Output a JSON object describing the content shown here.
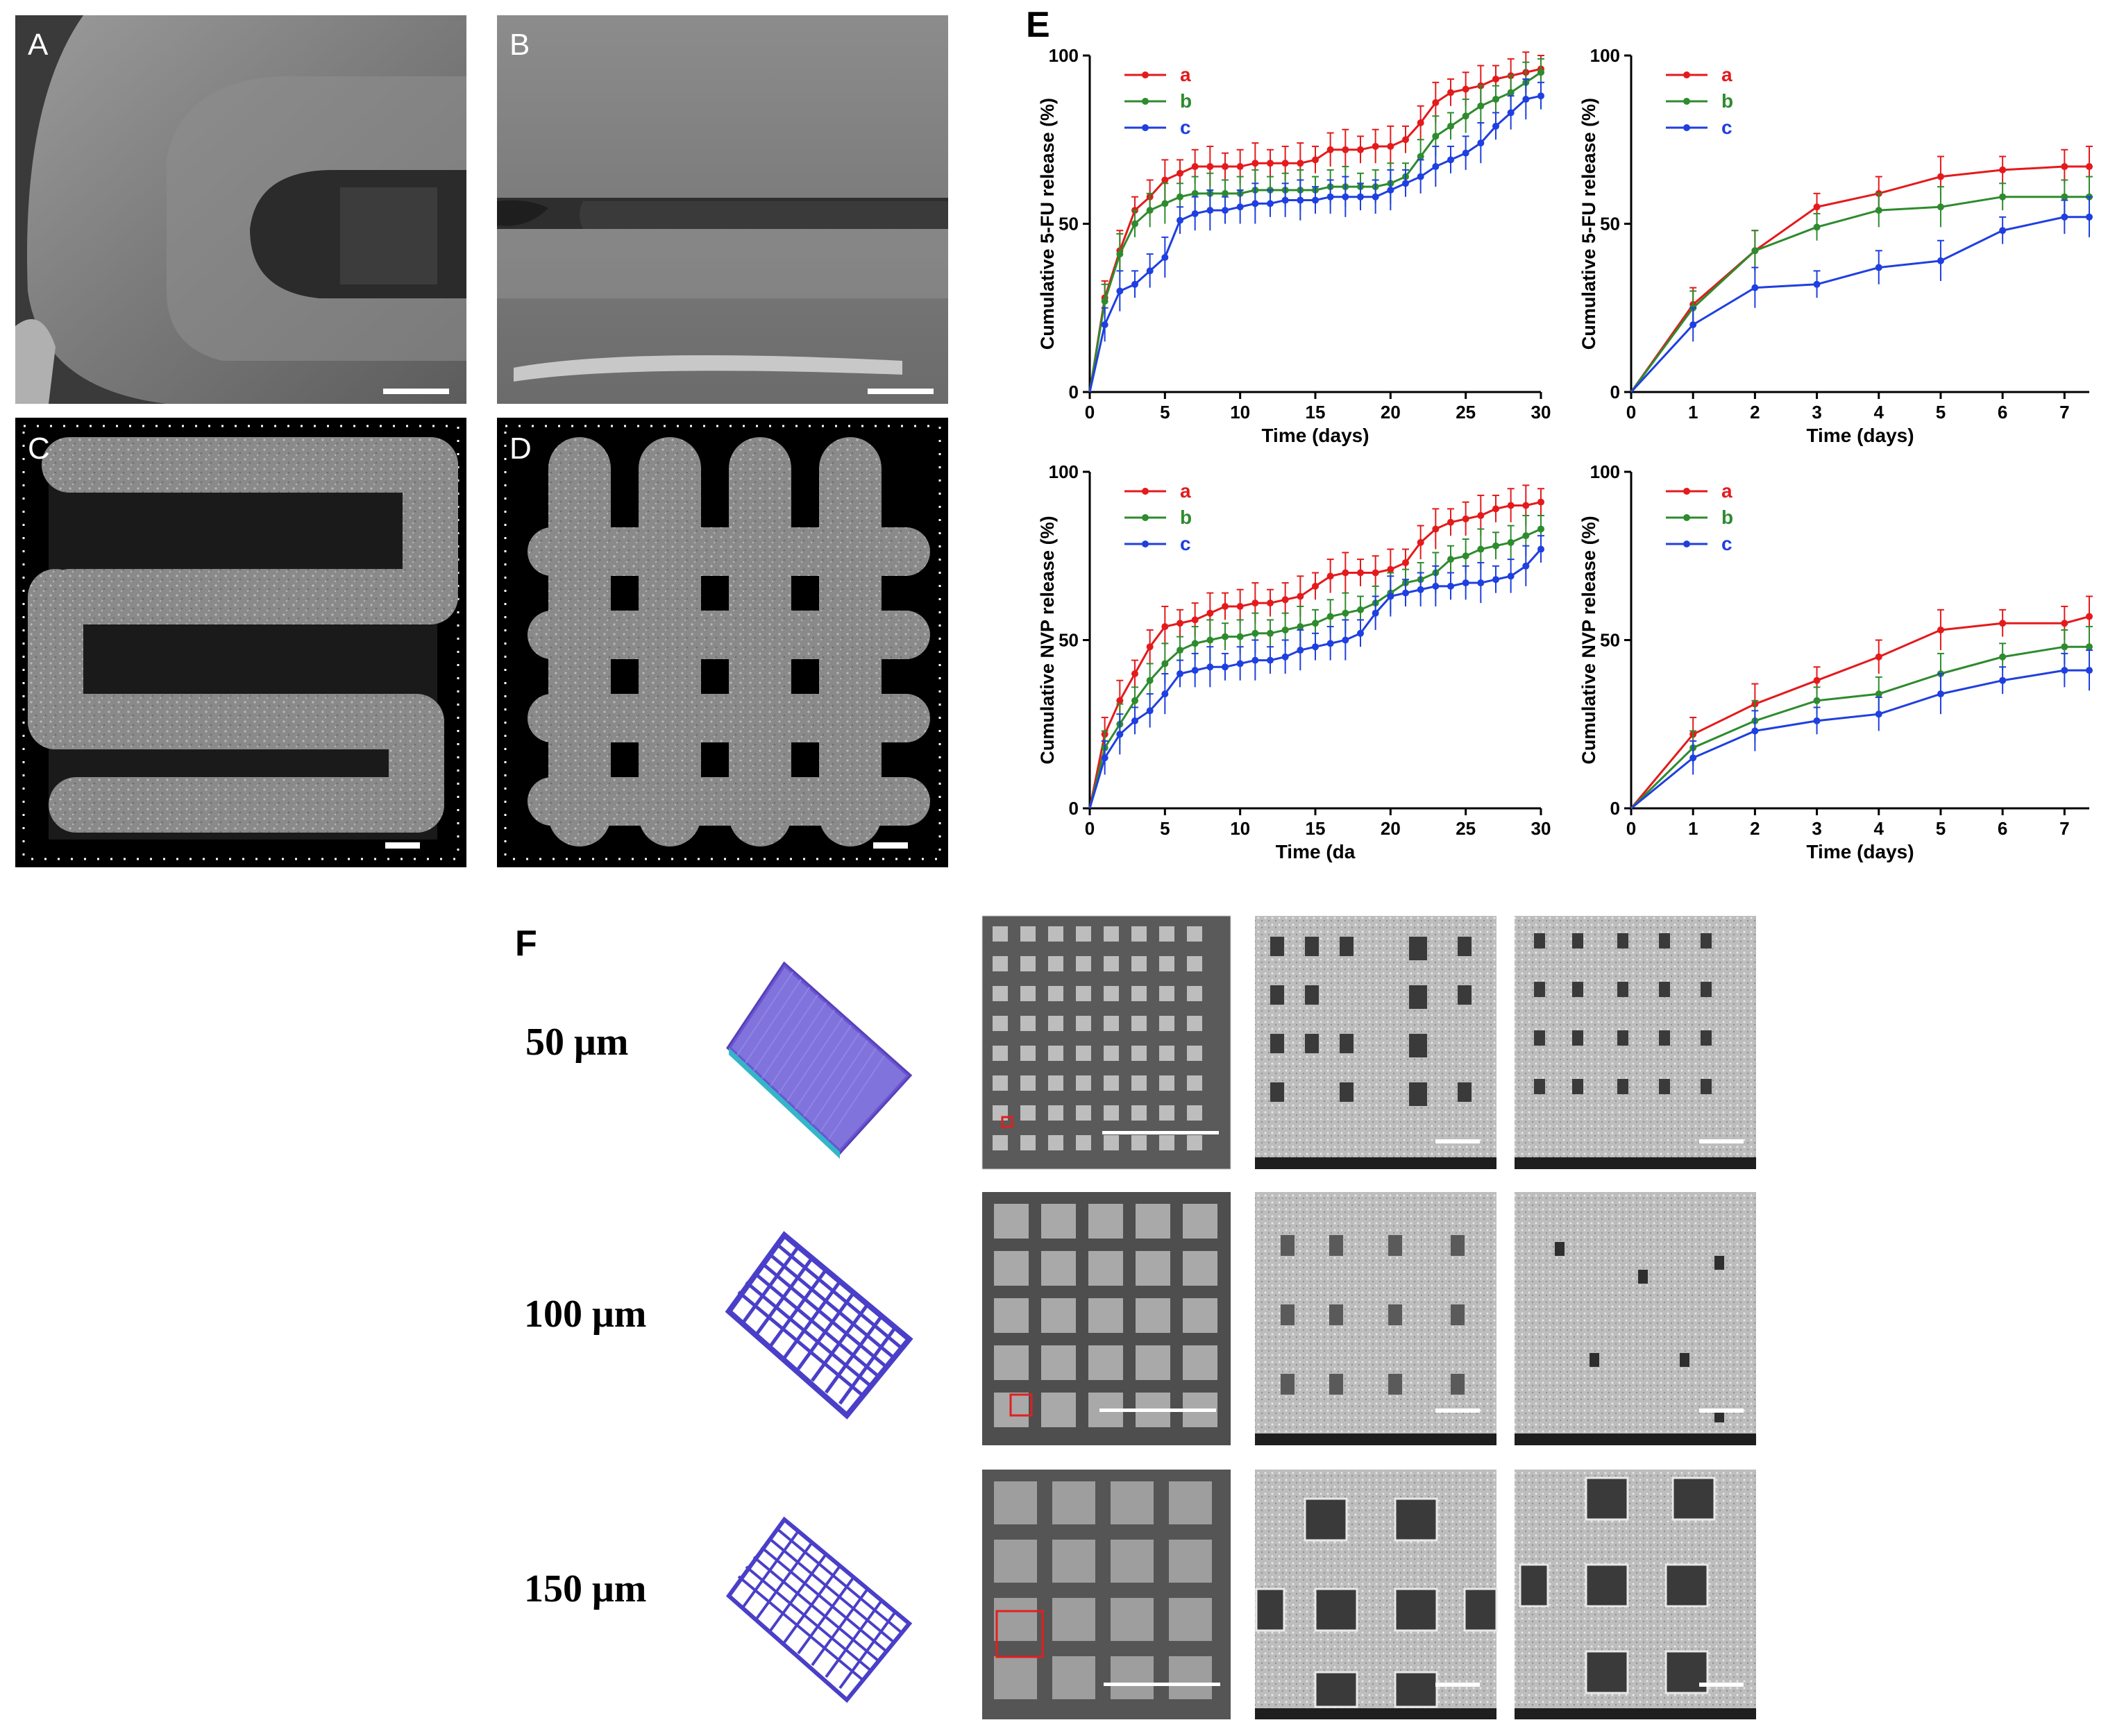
{
  "panels": {
    "A": {
      "label": "A"
    },
    "B": {
      "label": "B"
    },
    "C": {
      "label": "C"
    },
    "D": {
      "label": "D"
    },
    "E": {
      "label": "E"
    },
    "F": {
      "label": "F"
    }
  },
  "panel_F": {
    "rows": [
      {
        "label": "50 μm"
      },
      {
        "label": "100 μm"
      },
      {
        "label": "150 μm"
      }
    ]
  },
  "colors": {
    "a": "#e41a1c",
    "b": "#2e8b2e",
    "c": "#1f3fe0"
  },
  "chart_data": [
    {
      "id": "fu-30",
      "type": "line",
      "ylabel": "Cumulative 5-FU release (%)",
      "xlabel": "Time (days)",
      "xlim": [
        0,
        30
      ],
      "ylim": [
        0,
        100
      ],
      "xticks": [
        0,
        5,
        10,
        15,
        20,
        25,
        30
      ],
      "yticks": [
        0,
        50,
        100
      ],
      "legend": [
        "a",
        "b",
        "c"
      ],
      "x": [
        0,
        1,
        2,
        3,
        4,
        5,
        6,
        7,
        8,
        9,
        10,
        11,
        12,
        13,
        14,
        15,
        16,
        17,
        18,
        19,
        20,
        21,
        22,
        23,
        24,
        25,
        26,
        27,
        28,
        29,
        30
      ],
      "series": [
        {
          "name": "a",
          "values": [
            0,
            28,
            42,
            54,
            58,
            63,
            65,
            67,
            67,
            67,
            67,
            68,
            68,
            68,
            68,
            69,
            72,
            72,
            72,
            73,
            73,
            75,
            80,
            86,
            89,
            90,
            91,
            93,
            94,
            95,
            96
          ]
        },
        {
          "name": "b",
          "values": [
            0,
            27,
            41,
            50,
            54,
            56,
            58,
            59,
            59,
            59,
            59,
            60,
            60,
            60,
            60,
            60,
            61,
            61,
            61,
            61,
            62,
            64,
            70,
            76,
            79,
            82,
            85,
            87,
            89,
            92,
            95
          ]
        },
        {
          "name": "c",
          "values": [
            0,
            20,
            30,
            32,
            36,
            40,
            51,
            53,
            54,
            54,
            55,
            56,
            56,
            57,
            57,
            57,
            58,
            58,
            58,
            58,
            60,
            62,
            64,
            67,
            69,
            71,
            74,
            79,
            83,
            87,
            88
          ]
        }
      ]
    },
    {
      "id": "fu-7",
      "type": "line",
      "ylabel": "Cumulative 5-FU release (%)",
      "xlabel": "Time (days)",
      "xlim": [
        0,
        7.4
      ],
      "ylim": [
        0,
        100
      ],
      "xticks": [
        0,
        1,
        2,
        3,
        4,
        5,
        6,
        7
      ],
      "yticks": [
        0,
        50,
        100
      ],
      "legend": [
        "a",
        "b",
        "c"
      ],
      "x": [
        0,
        1,
        2,
        3,
        4,
        5,
        6,
        7,
        7.4
      ],
      "series": [
        {
          "name": "a",
          "values": [
            0,
            26,
            42,
            55,
            59,
            64,
            66,
            67,
            67
          ]
        },
        {
          "name": "b",
          "values": [
            0,
            25,
            42,
            49,
            54,
            55,
            58,
            58,
            58
          ]
        },
        {
          "name": "c",
          "values": [
            0,
            20,
            31,
            32,
            37,
            39,
            48,
            52,
            52
          ]
        }
      ]
    },
    {
      "id": "nvp-30",
      "type": "line",
      "ylabel": "Cumulative NVP release (%)",
      "xlabel": "Time (da",
      "xlim": [
        0,
        30
      ],
      "ylim": [
        0,
        100
      ],
      "xticks": [
        0,
        5,
        10,
        15,
        20,
        25,
        30
      ],
      "yticks": [
        0,
        50,
        100
      ],
      "legend": [
        "a",
        "b",
        "c"
      ],
      "x": [
        0,
        1,
        2,
        3,
        4,
        5,
        6,
        7,
        8,
        9,
        10,
        11,
        12,
        13,
        14,
        15,
        16,
        17,
        18,
        19,
        20,
        21,
        22,
        23,
        24,
        25,
        26,
        27,
        28,
        29,
        30
      ],
      "series": [
        {
          "name": "a",
          "values": [
            0,
            22,
            32,
            40,
            48,
            54,
            55,
            56,
            58,
            60,
            60,
            61,
            61,
            62,
            63,
            66,
            69,
            70,
            70,
            70,
            71,
            73,
            79,
            83,
            85,
            86,
            87,
            89,
            90,
            90,
            91
          ]
        },
        {
          "name": "b",
          "values": [
            0,
            18,
            25,
            32,
            38,
            43,
            47,
            49,
            50,
            51,
            51,
            52,
            52,
            53,
            54,
            55,
            57,
            58,
            59,
            61,
            64,
            67,
            68,
            70,
            74,
            75,
            77,
            78,
            79,
            81,
            83
          ]
        },
        {
          "name": "c",
          "values": [
            0,
            15,
            22,
            26,
            29,
            34,
            40,
            41,
            42,
            42,
            43,
            44,
            44,
            45,
            47,
            48,
            49,
            50,
            52,
            58,
            63,
            64,
            65,
            66,
            66,
            67,
            67,
            68,
            69,
            72,
            77
          ]
        }
      ]
    },
    {
      "id": "nvp-7",
      "type": "line",
      "ylabel": "Cumulative NVP release (%)",
      "xlabel": "Time (days)",
      "xlim": [
        0,
        7.4
      ],
      "ylim": [
        0,
        100
      ],
      "xticks": [
        0,
        1,
        2,
        3,
        4,
        5,
        6,
        7
      ],
      "yticks": [
        0,
        50,
        100
      ],
      "legend": [
        "a",
        "b",
        "c"
      ],
      "x": [
        0,
        1,
        2,
        3,
        4,
        5,
        6,
        7,
        7.4
      ],
      "series": [
        {
          "name": "a",
          "values": [
            0,
            22,
            31,
            38,
            45,
            53,
            55,
            55,
            57
          ]
        },
        {
          "name": "b",
          "values": [
            0,
            18,
            26,
            32,
            34,
            40,
            45,
            48,
            48
          ]
        },
        {
          "name": "c",
          "values": [
            0,
            15,
            23,
            26,
            28,
            34,
            38,
            41,
            41
          ]
        }
      ]
    }
  ]
}
